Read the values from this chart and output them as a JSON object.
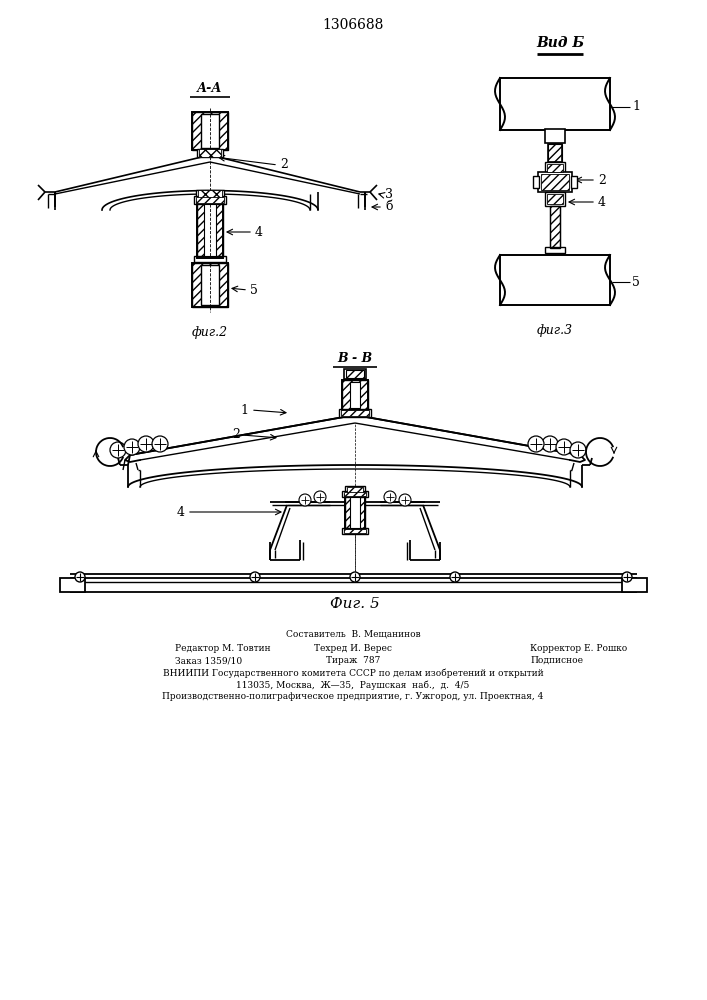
{
  "title": "1306688",
  "background_color": "#ffffff",
  "line_color": "#000000",
  "fig_width": 7.07,
  "fig_height": 10.0,
  "footer_line0": "Составитель  В. Мещанинов",
  "footer_line1_left": "Редактор М. Товтин",
  "footer_line1_mid": "Техред И. Верес",
  "footer_line1_right": "Корректор Е. Рошко",
  "footer_line2_left": "Заказ 1359/10",
  "footer_line2_mid": "Тираж  787",
  "footer_line2_right": "Подписное",
  "footer_line3": "ВНИИПИ Государственного комитета СССР по делам изобретений и открытий",
  "footer_line4": "113035, Москва,  Ж—35,  Раушская  наб.,  д.  4/5",
  "footer_line5": "Производственно-полиграфическое предприятие, г. Ужгород, ул. Проектная, 4",
  "label_AA": "А-А",
  "label_BB": "В - В",
  "label_vid": "Вид Б",
  "label_fig2": "фиг.2",
  "label_fig3": "фиг.3",
  "label_fig5": "Фиг. 5"
}
